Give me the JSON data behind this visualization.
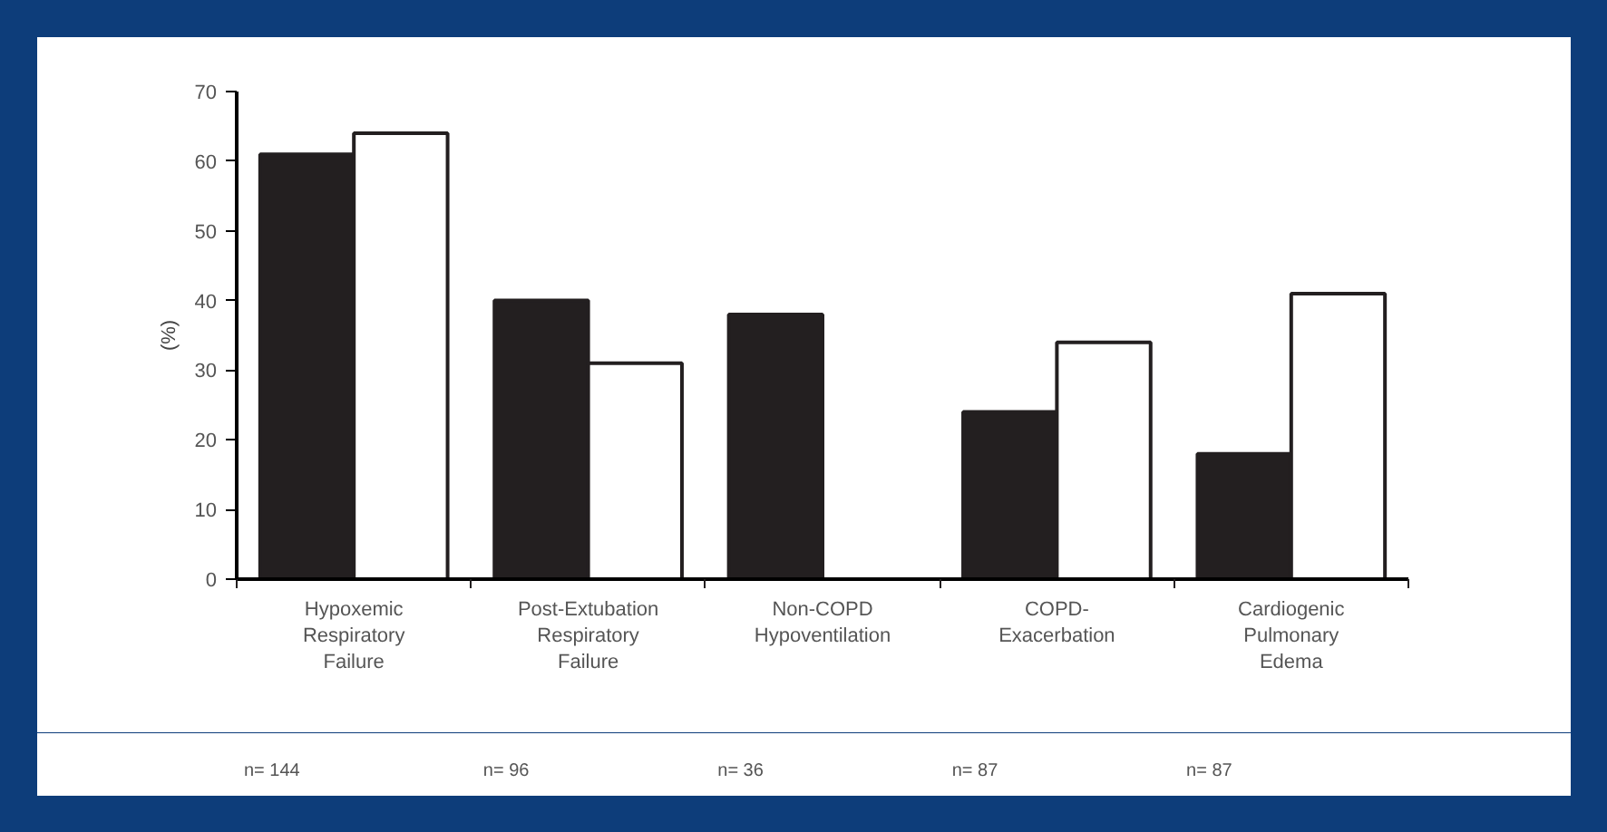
{
  "chart_data": {
    "type": "bar",
    "categories": [
      "Hypoxemic\nRespiratory\nFailure",
      "Post-Extubation\nRespiratory\nFailure",
      "Non-COPD\nHypoventilation",
      "COPD-\nExacerbation",
      "Cardiogenic\nPulmonary\nEdema"
    ],
    "series": [
      {
        "color": "#231f20",
        "values": [
          61,
          40,
          38,
          24,
          18
        ]
      },
      {
        "color": "#ffffff",
        "values": [
          64,
          31,
          null,
          34,
          41
        ]
      }
    ],
    "ylabel": "(%)",
    "ylim": [
      0,
      70
    ],
    "yticks": [
      0,
      10,
      20,
      30,
      40,
      50,
      60,
      70
    ],
    "grid": false,
    "annotations": [
      "n= 144",
      "n= 96",
      "n= 36",
      "n= 87",
      "n= 87"
    ]
  }
}
